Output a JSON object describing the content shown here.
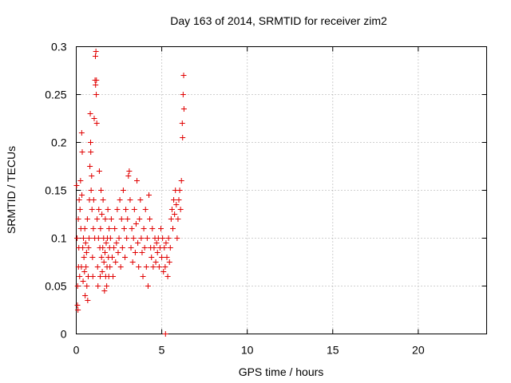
{
  "chart_data": {
    "type": "scatter",
    "title": "Day 163 of 2014, SRMTID for receiver zim2",
    "xlabel": "GPS time / hours",
    "ylabel": "SRMTID / TECUs",
    "xlim": [
      0,
      24
    ],
    "ylim": [
      0,
      0.3
    ],
    "x_ticks": [
      0,
      5,
      10,
      15,
      20
    ],
    "x_tick_labels": [
      "0",
      "5",
      "10",
      "15",
      "20"
    ],
    "y_ticks": [
      0,
      0.05,
      0.1,
      0.15,
      0.2,
      0.25,
      0.3
    ],
    "y_tick_labels": [
      "0",
      "0.05",
      "0.1",
      "0.15",
      "0.2",
      "0.25",
      "0.3"
    ],
    "grid": true,
    "legend": "none",
    "marker": "plus",
    "color": "#e00000",
    "series": [
      {
        "points": [
          [
            0.02,
            0.155
          ],
          [
            0.05,
            0.1
          ],
          [
            0.07,
            0.03
          ],
          [
            0.08,
            0.05
          ],
          [
            0.1,
            0.025
          ],
          [
            0.12,
            0.12
          ],
          [
            0.13,
            0.07
          ],
          [
            0.15,
            0.09
          ],
          [
            0.17,
            0.14
          ],
          [
            0.2,
            0.06
          ],
          [
            0.22,
            0.13
          ],
          [
            0.25,
            0.16
          ],
          [
            0.27,
            0.11
          ],
          [
            0.3,
            0.07
          ],
          [
            0.32,
            0.21
          ],
          [
            0.33,
            0.145
          ],
          [
            0.35,
            0.19
          ],
          [
            0.38,
            0.09
          ],
          [
            0.4,
            0.055
          ],
          [
            0.42,
            0.1
          ],
          [
            0.45,
            0.08
          ],
          [
            0.48,
            0.065
          ],
          [
            0.5,
            0.11
          ],
          [
            0.52,
            0.04
          ],
          [
            0.55,
            0.095
          ],
          [
            0.57,
            0.07
          ],
          [
            0.6,
            0.085
          ],
          [
            0.62,
            0.05
          ],
          [
            0.65,
            0.12
          ],
          [
            0.67,
            0.035
          ],
          [
            0.7,
            0.06
          ],
          [
            0.72,
            0.09
          ],
          [
            0.75,
            0.1
          ],
          [
            0.77,
            0.14
          ],
          [
            0.8,
            0.175
          ],
          [
            0.82,
            0.23
          ],
          [
            0.84,
            0.2
          ],
          [
            0.85,
            0.19
          ],
          [
            0.87,
            0.15
          ],
          [
            0.9,
            0.165
          ],
          [
            0.92,
            0.13
          ],
          [
            0.95,
            0.08
          ],
          [
            0.97,
            0.06
          ],
          [
            1.0,
            0.11
          ],
          [
            1.02,
            0.14
          ],
          [
            1.05,
            0.225
          ],
          [
            1.08,
            0.1
          ],
          [
            1.1,
            0.265
          ],
          [
            1.12,
            0.29
          ],
          [
            1.13,
            0.26
          ],
          [
            1.15,
            0.295
          ],
          [
            1.17,
            0.25
          ],
          [
            1.18,
            0.265
          ],
          [
            1.2,
            0.22
          ],
          [
            1.22,
            0.12
          ],
          [
            1.25,
            0.07
          ],
          [
            1.27,
            0.05
          ],
          [
            1.3,
            0.1
          ],
          [
            1.32,
            0.13
          ],
          [
            1.35,
            0.17
          ],
          [
            1.38,
            0.09
          ],
          [
            1.4,
            0.06
          ],
          [
            1.42,
            0.11
          ],
          [
            1.45,
            0.15
          ],
          [
            1.48,
            0.08
          ],
          [
            1.5,
            0.125
          ],
          [
            1.52,
            0.065
          ],
          [
            1.55,
            0.09
          ],
          [
            1.57,
            0.14
          ],
          [
            1.6,
            0.1
          ],
          [
            1.62,
            0.075
          ],
          [
            1.65,
            0.045
          ],
          [
            1.68,
            0.085
          ],
          [
            1.7,
            0.12
          ],
          [
            1.72,
            0.06
          ],
          [
            1.75,
            0.095
          ],
          [
            1.78,
            0.05
          ],
          [
            1.8,
            0.07
          ],
          [
            1.82,
            0.1
          ],
          [
            1.85,
            0.13
          ],
          [
            1.88,
            0.08
          ],
          [
            1.9,
            0.06
          ],
          [
            1.92,
            0.11
          ],
          [
            1.95,
            0.09
          ],
          [
            1.97,
            0.07
          ],
          [
            2.0,
            0.1
          ],
          [
            2.05,
            0.12
          ],
          [
            2.1,
            0.08
          ],
          [
            2.15,
            0.06
          ],
          [
            2.2,
            0.09
          ],
          [
            2.25,
            0.11
          ],
          [
            2.3,
            0.075
          ],
          [
            2.35,
            0.095
          ],
          [
            2.4,
            0.13
          ],
          [
            2.45,
            0.085
          ],
          [
            2.5,
            0.1
          ],
          [
            2.55,
            0.14
          ],
          [
            2.6,
            0.07
          ],
          [
            2.65,
            0.12
          ],
          [
            2.7,
            0.09
          ],
          [
            2.75,
            0.15
          ],
          [
            2.8,
            0.11
          ],
          [
            2.85,
            0.08
          ],
          [
            2.9,
            0.13
          ],
          [
            2.95,
            0.1
          ],
          [
            3.0,
            0.12
          ],
          [
            3.05,
            0.165
          ],
          [
            3.1,
            0.17
          ],
          [
            3.15,
            0.14
          ],
          [
            3.2,
            0.09
          ],
          [
            3.25,
            0.11
          ],
          [
            3.3,
            0.075
          ],
          [
            3.35,
            0.1
          ],
          [
            3.4,
            0.13
          ],
          [
            3.45,
            0.085
          ],
          [
            3.5,
            0.115
          ],
          [
            3.55,
            0.16
          ],
          [
            3.6,
            0.095
          ],
          [
            3.65,
            0.07
          ],
          [
            3.7,
            0.12
          ],
          [
            3.75,
            0.14
          ],
          [
            3.8,
            0.1
          ],
          [
            3.85,
            0.085
          ],
          [
            3.9,
            0.06
          ],
          [
            3.95,
            0.11
          ],
          [
            4.0,
            0.09
          ],
          [
            4.05,
            0.13
          ],
          [
            4.1,
            0.07
          ],
          [
            4.15,
            0.1
          ],
          [
            4.2,
            0.05
          ],
          [
            4.25,
            0.145
          ],
          [
            4.3,
            0.12
          ],
          [
            4.35,
            0.09
          ],
          [
            4.4,
            0.08
          ],
          [
            4.45,
            0.11
          ],
          [
            4.5,
            0.07
          ],
          [
            4.55,
            0.09
          ],
          [
            4.6,
            0.1
          ],
          [
            4.65,
            0.075
          ],
          [
            4.7,
            0.095
          ],
          [
            4.75,
            0.085
          ],
          [
            4.8,
            0.1
          ],
          [
            4.85,
            0.07
          ],
          [
            4.9,
            0.09
          ],
          [
            4.95,
            0.11
          ],
          [
            5.0,
            0.08
          ],
          [
            5.05,
            0.1
          ],
          [
            5.1,
            0.065
          ],
          [
            5.15,
            0.09
          ],
          [
            5.2,
            0.07
          ],
          [
            5.22,
            0.0
          ],
          [
            5.25,
            0.095
          ],
          [
            5.3,
            0.08
          ],
          [
            5.35,
            0.06
          ],
          [
            5.4,
            0.1
          ],
          [
            5.45,
            0.075
          ],
          [
            5.5,
            0.09
          ],
          [
            5.55,
            0.12
          ],
          [
            5.6,
            0.13
          ],
          [
            5.65,
            0.11
          ],
          [
            5.7,
            0.14
          ],
          [
            5.75,
            0.125
          ],
          [
            5.8,
            0.15
          ],
          [
            5.85,
            0.135
          ],
          [
            5.9,
            0.1
          ],
          [
            5.95,
            0.12
          ],
          [
            6.0,
            0.14
          ],
          [
            6.05,
            0.15
          ],
          [
            6.1,
            0.13
          ],
          [
            6.15,
            0.16
          ],
          [
            6.2,
            0.22
          ],
          [
            6.22,
            0.205
          ],
          [
            6.25,
            0.25
          ],
          [
            6.28,
            0.27
          ],
          [
            6.3,
            0.235
          ]
        ]
      }
    ]
  }
}
